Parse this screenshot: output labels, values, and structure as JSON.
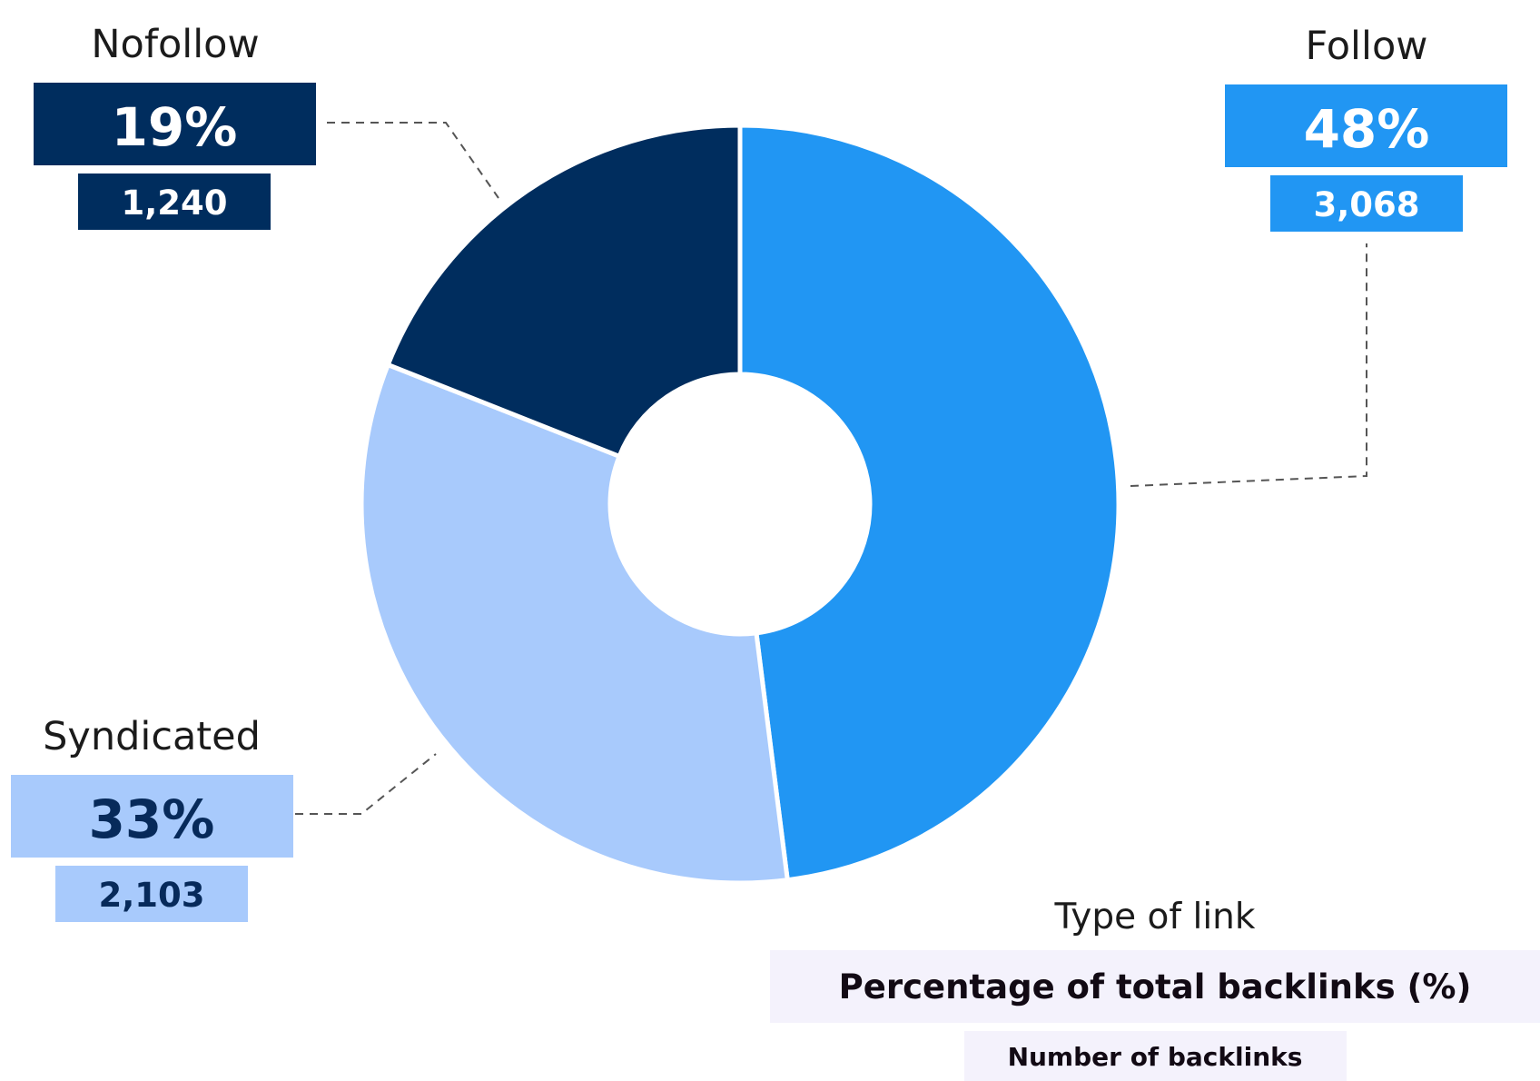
{
  "chart_data": {
    "type": "pie",
    "donut": true,
    "slices": [
      {
        "label": "Follow",
        "percent": "48%",
        "value": 48,
        "count": "3,068",
        "color": "#2196f3",
        "text_color": "#ffffff"
      },
      {
        "label": "Syndicated",
        "percent": "33%",
        "value": 33,
        "count": "2,103",
        "color": "#a8cafc",
        "text_color": "#072a5a"
      },
      {
        "label": "Nofollow",
        "percent": "19%",
        "value": 19,
        "count": "1,240",
        "color": "#002d5e",
        "text_color": "#ffffff"
      }
    ],
    "legend": {
      "title": "Type of link",
      "primary": "Percentage of total backlinks (%)",
      "secondary": "Number of backlinks",
      "background": "#f4f2fc"
    }
  }
}
